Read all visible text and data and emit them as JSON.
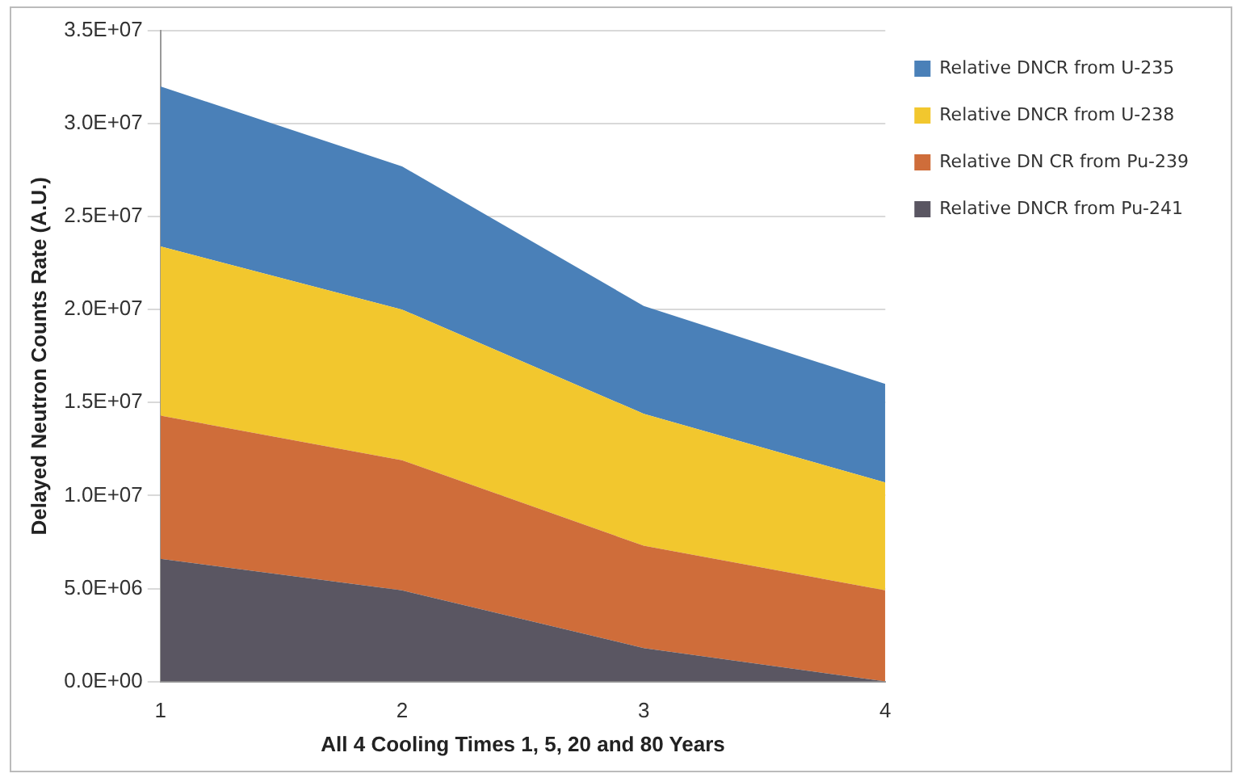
{
  "chart_data": {
    "type": "area",
    "stacked": true,
    "xlabel": "All 4 Cooling Times 1, 5, 20 and 80 Years",
    "ylabel": "Delayed Neutron Counts Rate (A.U.)",
    "x": [
      1,
      2,
      3,
      4
    ],
    "xlim": [
      1,
      4
    ],
    "xticks": [
      1,
      2,
      3,
      4
    ],
    "ylim": [
      0,
      35000000
    ],
    "yticks": [
      {
        "value": 0,
        "label": "0.0E+00"
      },
      {
        "value": 5000000,
        "label": "5.0E+06"
      },
      {
        "value": 10000000,
        "label": "1.0E+07"
      },
      {
        "value": 15000000,
        "label": "1.5E+07"
      },
      {
        "value": 20000000,
        "label": "2.0E+07"
      },
      {
        "value": 25000000,
        "label": "2.5E+07"
      },
      {
        "value": 30000000,
        "label": "3.0E+07"
      },
      {
        "value": 35000000,
        "label": "3.5E+07"
      }
    ],
    "grid": "y",
    "legend": "right",
    "series": [
      {
        "name": "Relative DNCR from Pu-241",
        "color": "#5a5662",
        "values": [
          6600000,
          4900000,
          1800000,
          0
        ]
      },
      {
        "name": "Relative DN CR from Pu-239",
        "color": "#cf6d3a",
        "values": [
          7700000,
          7000000,
          5500000,
          4900000
        ]
      },
      {
        "name": "Relative DNCR from U-238",
        "color": "#f2c72e",
        "values": [
          9100000,
          8100000,
          7100000,
          5800000
        ]
      },
      {
        "name": "Relative DNCR from U-235",
        "color": "#4a80b8",
        "values": [
          8600000,
          7700000,
          5800000,
          5300000
        ]
      }
    ]
  }
}
